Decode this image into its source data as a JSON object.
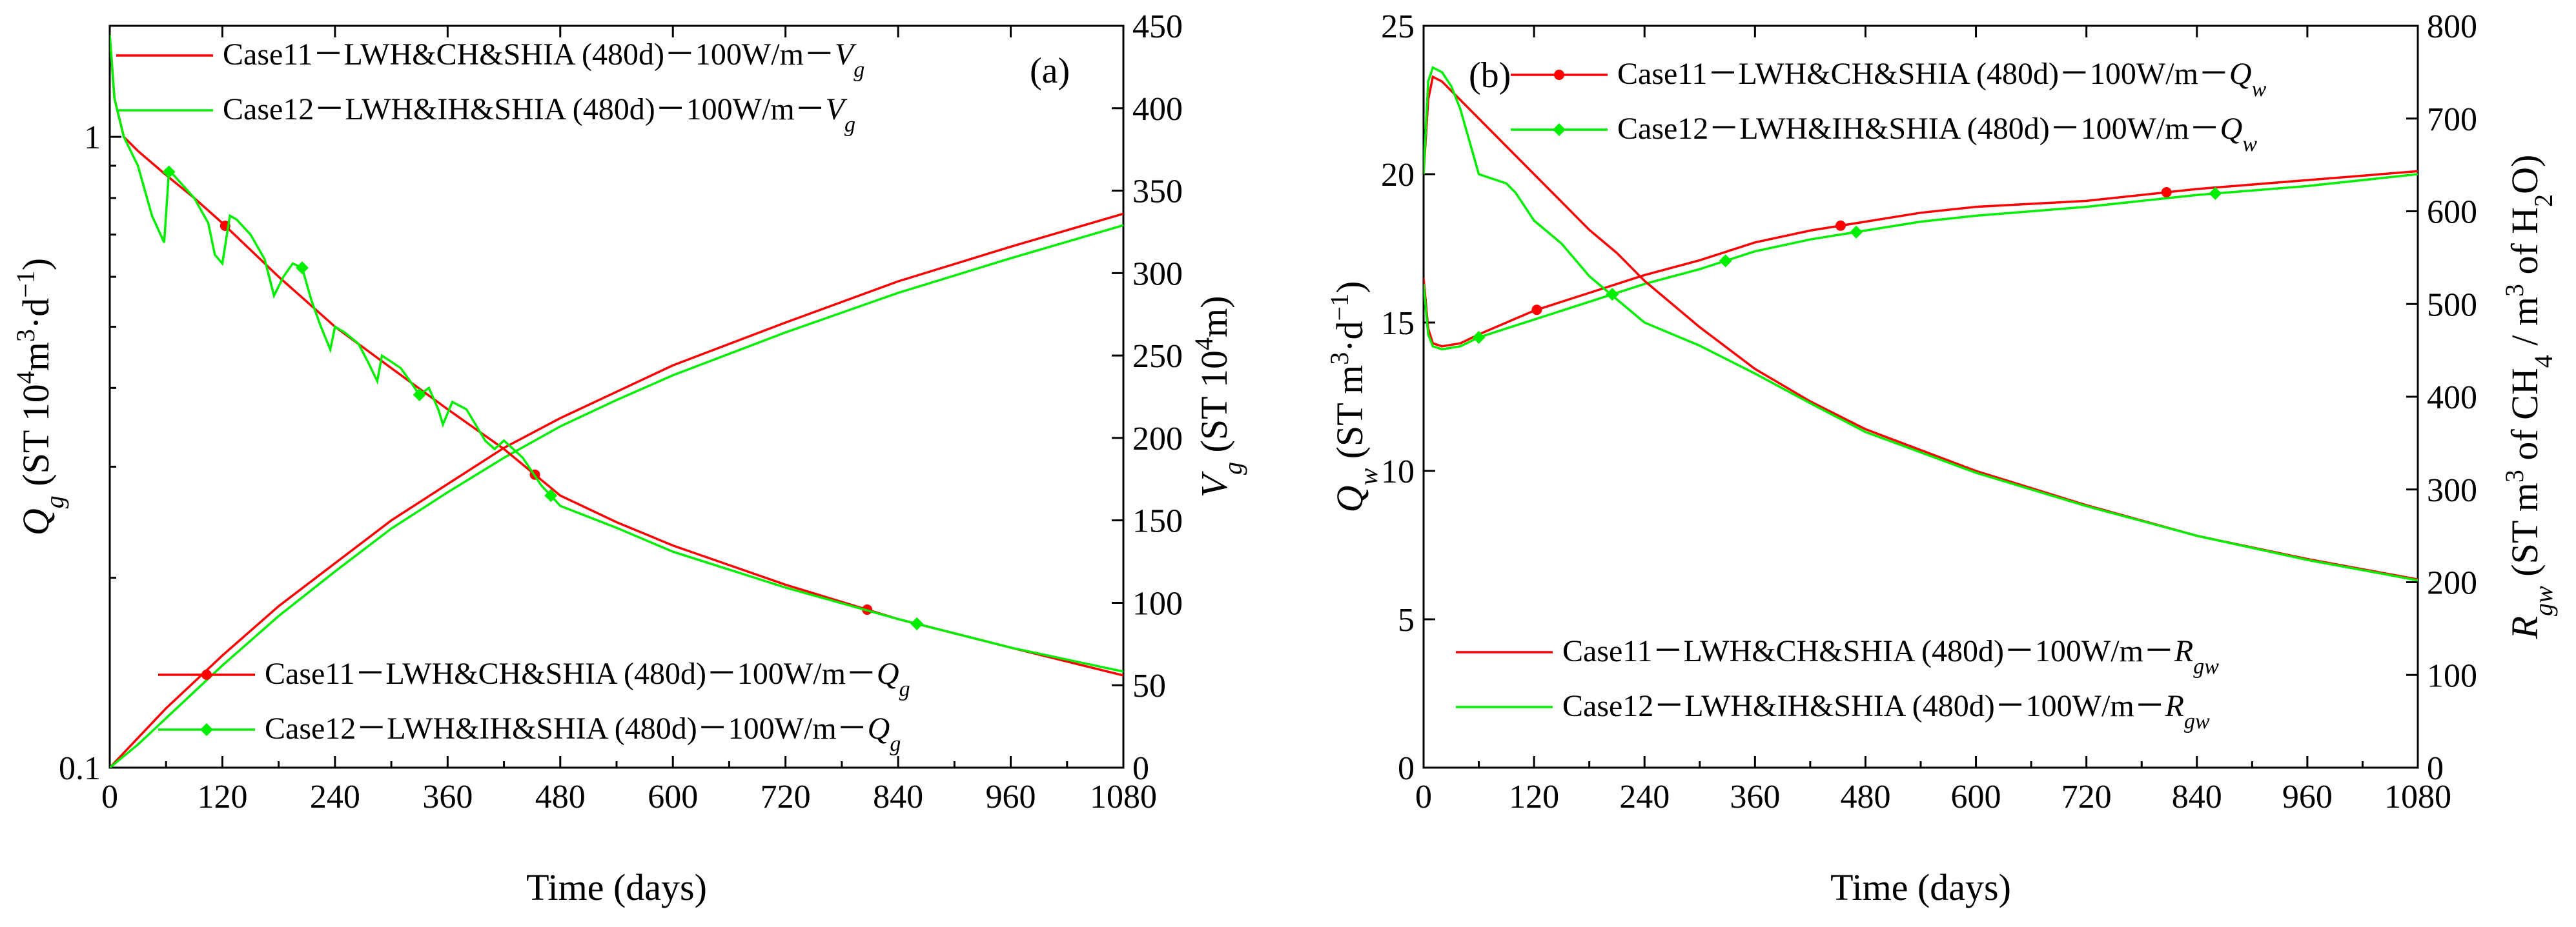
{
  "colors": {
    "case11": "#ff0000",
    "case12": "#00ee00",
    "axis": "#000000"
  },
  "chart_data": [
    {
      "type": "line",
      "panel_label": "(a)",
      "xlabel": "Time (days)",
      "xlim": [
        0,
        1080
      ],
      "x_ticks": [
        "0",
        "120",
        "240",
        "360",
        "480",
        "600",
        "720",
        "840",
        "960",
        "1080"
      ],
      "left_axis": {
        "label": "Qg (ST 10⁴m³·d⁻¹)",
        "label_main": "Q",
        "label_sub": "g",
        "label_rest": " (ST 10",
        "label_sup1": "4",
        "label_mid": "m",
        "label_sup2": "3",
        "label_mid2": "·d",
        "label_sup3": "−1",
        "label_end": ")",
        "scale": "log",
        "lim": [
          0.1,
          1.5
        ],
        "ticks": [
          "0.1",
          "1"
        ]
      },
      "right_axis": {
        "label": "Vg (ST 10⁴m³)",
        "label_main": "V",
        "label_sub": "g",
        "label_rest": " (ST 10",
        "label_sup1": "4",
        "label_mid": "m",
        "label_sup2": "3",
        "label_end": ")",
        "scale": "linear",
        "lim": [
          0,
          450
        ],
        "ticks": [
          "0",
          "50",
          "100",
          "150",
          "200",
          "250",
          "300",
          "350",
          "400",
          "450"
        ]
      },
      "legend_top": [
        {
          "text": "Case11－LWH&CH&SHIA (480d)－100W/m－",
          "var": "V",
          "sub": "g"
        },
        {
          "text": "Case12－LWH&IH&SHIA (480d)－100W/m－",
          "var": "V",
          "sub": "g"
        }
      ],
      "legend_bottom": [
        {
          "text": "Case11－LWH&CH&SHIA (480d)－100W/m－",
          "var": "Q",
          "sub": "g"
        },
        {
          "text": "Case12－LWH&IH&SHIA (480d)－100W/m－",
          "var": "Q",
          "sub": "g"
        }
      ],
      "series": [
        {
          "name": "Case11 Vg",
          "axis": "right",
          "color": "#ff0000",
          "marker": "none",
          "x": [
            0,
            30,
            60,
            120,
            180,
            240,
            300,
            360,
            420,
            480,
            540,
            600,
            720,
            840,
            960,
            1080
          ],
          "y": [
            0,
            18,
            36,
            68,
            98,
            124,
            150,
            172,
            194,
            212,
            228,
            244,
            270,
            295,
            316,
            336
          ]
        },
        {
          "name": "Case12 Vg",
          "axis": "right",
          "color": "#00ee00",
          "marker": "none",
          "x": [
            0,
            30,
            60,
            120,
            180,
            240,
            300,
            360,
            420,
            480,
            540,
            600,
            720,
            840,
            960,
            1080
          ],
          "y": [
            0,
            14,
            30,
            62,
            92,
            119,
            145,
            167,
            188,
            207,
            223,
            238,
            264,
            288,
            309,
            329
          ]
        },
        {
          "name": "Case11 Qg",
          "axis": "left",
          "color": "#ff0000",
          "marker": "circle",
          "x": [
            0,
            5,
            15,
            30,
            60,
            90,
            120,
            180,
            240,
            300,
            360,
            420,
            480,
            540,
            600,
            720,
            840,
            960,
            1080
          ],
          "y": [
            1.45,
            1.15,
            1.0,
            0.95,
            0.87,
            0.8,
            0.73,
            0.6,
            0.5,
            0.43,
            0.37,
            0.32,
            0.27,
            0.245,
            0.225,
            0.195,
            0.172,
            0.155,
            0.14
          ],
          "marker_x": [
            123,
            453,
            807
          ]
        },
        {
          "name": "Case12 Qg",
          "axis": "left",
          "color": "#00ee00",
          "marker": "diamond",
          "x": [
            0,
            5,
            15,
            30,
            45,
            58,
            63,
            68,
            90,
            105,
            112,
            120,
            128,
            135,
            150,
            165,
            175,
            185,
            195,
            205,
            215,
            225,
            235,
            240,
            250,
            265,
            275,
            285,
            290,
            300,
            310,
            320,
            330,
            340,
            350,
            355,
            365,
            380,
            400,
            410,
            420,
            440,
            460,
            470,
            480,
            540,
            600,
            720,
            840,
            960,
            1080
          ],
          "y": [
            1.45,
            1.15,
            1.0,
            0.9,
            0.75,
            0.68,
            0.88,
            0.87,
            0.8,
            0.73,
            0.65,
            0.63,
            0.75,
            0.74,
            0.7,
            0.64,
            0.56,
            0.6,
            0.63,
            0.62,
            0.55,
            0.5,
            0.46,
            0.5,
            0.49,
            0.47,
            0.44,
            0.41,
            0.45,
            0.44,
            0.43,
            0.41,
            0.39,
            0.4,
            0.37,
            0.35,
            0.38,
            0.37,
            0.33,
            0.32,
            0.33,
            0.31,
            0.28,
            0.27,
            0.26,
            0.24,
            0.22,
            0.193,
            0.172,
            0.155,
            0.142
          ],
          "marker_x": [
            63,
            205,
            330,
            470,
            860
          ]
        }
      ]
    },
    {
      "type": "line",
      "panel_label": "(b)",
      "xlabel": "Time (days)",
      "xlim": [
        0,
        1080
      ],
      "x_ticks": [
        "0",
        "120",
        "240",
        "360",
        "480",
        "600",
        "720",
        "840",
        "960",
        "1080"
      ],
      "left_axis": {
        "label": "Qw (ST m³·d⁻¹)",
        "label_main": "Q",
        "label_sub": "w",
        "label_rest": " (ST m",
        "label_sup1": "3",
        "label_mid": "·d",
        "label_sup2": "−1",
        "label_end": ")",
        "scale": "linear",
        "lim": [
          0,
          25
        ],
        "ticks": [
          "0",
          "5",
          "10",
          "15",
          "20",
          "25"
        ]
      },
      "right_axis": {
        "label": "Rgw (ST m³ of CH₄ / m³ of H₂O)",
        "label_main": "R",
        "label_sub": "gw",
        "label_rest": " (ST m",
        "label_sup1": "3",
        "label_mid": " of CH",
        "label_sub2": "4",
        "label_mid2": " / m",
        "label_sup2": "3",
        "label_mid3": " of H",
        "label_sub3": "2",
        "label_end": "O)",
        "scale": "linear",
        "lim": [
          0,
          800
        ],
        "ticks": [
          "0",
          "100",
          "200",
          "300",
          "400",
          "500",
          "600",
          "700",
          "800"
        ]
      },
      "legend_top": [
        {
          "text": "Case11－LWH&CH&SHIA (480d)－100W/m－",
          "var": "Q",
          "sub": "w"
        },
        {
          "text": "Case12－LWH&IH&SHIA (480d)－100W/m－",
          "var": "Q",
          "sub": "w"
        }
      ],
      "legend_bottom": [
        {
          "text": "Case11－LWH&CH&SHIA (480d)－100W/m－",
          "var": "R",
          "sub": "gw"
        },
        {
          "text": "Case12－LWH&IH&SHIA (480d)－100W/m－",
          "var": "R",
          "sub": "gw"
        }
      ],
      "series": [
        {
          "name": "Case11 Qw",
          "axis": "left",
          "color": "#ff0000",
          "marker": "circle",
          "x": [
            0,
            5,
            10,
            20,
            40,
            60,
            90,
            120,
            180,
            240,
            300,
            360,
            420,
            480,
            540,
            600,
            720,
            840,
            960,
            1080
          ],
          "y": [
            16.5,
            14.8,
            14.3,
            14.2,
            14.3,
            14.6,
            15.0,
            15.4,
            16.0,
            16.6,
            17.1,
            17.7,
            18.1,
            18.4,
            18.7,
            18.9,
            19.1,
            19.5,
            19.8,
            20.1
          ],
          "marker_x": [
            123,
            453,
            807
          ]
        },
        {
          "name": "Case12 Qw",
          "axis": "left",
          "color": "#00ee00",
          "marker": "diamond",
          "x": [
            0,
            5,
            10,
            20,
            40,
            60,
            90,
            120,
            180,
            240,
            300,
            360,
            420,
            480,
            540,
            600,
            720,
            840,
            960,
            1080
          ],
          "y": [
            16.3,
            14.6,
            14.2,
            14.1,
            14.2,
            14.5,
            14.8,
            15.1,
            15.7,
            16.3,
            16.8,
            17.4,
            17.8,
            18.1,
            18.4,
            18.6,
            18.9,
            19.3,
            19.6,
            20.0
          ],
          "marker_x": [
            60,
            205,
            328,
            470,
            860
          ]
        },
        {
          "name": "Case11 Rgw",
          "axis": "right",
          "color": "#ff0000",
          "marker": "none",
          "x": [
            0,
            5,
            10,
            20,
            40,
            60,
            90,
            120,
            150,
            180,
            210,
            240,
            300,
            360,
            420,
            480,
            600,
            720,
            840,
            960,
            1080
          ],
          "y": [
            640,
            720,
            745,
            740,
            720,
            700,
            670,
            640,
            610,
            580,
            555,
            525,
            475,
            430,
            395,
            365,
            320,
            283,
            250,
            225,
            203
          ]
        },
        {
          "name": "Case12 Rgw",
          "axis": "right",
          "color": "#00ee00",
          "marker": "none",
          "x": [
            0,
            5,
            10,
            20,
            30,
            40,
            60,
            90,
            100,
            120,
            150,
            180,
            210,
            240,
            300,
            360,
            420,
            480,
            600,
            720,
            840,
            960,
            1080
          ],
          "y": [
            640,
            740,
            755,
            750,
            735,
            710,
            640,
            630,
            620,
            590,
            565,
            530,
            505,
            480,
            455,
            425,
            393,
            362,
            318,
            282,
            250,
            224,
            202
          ]
        }
      ]
    }
  ]
}
